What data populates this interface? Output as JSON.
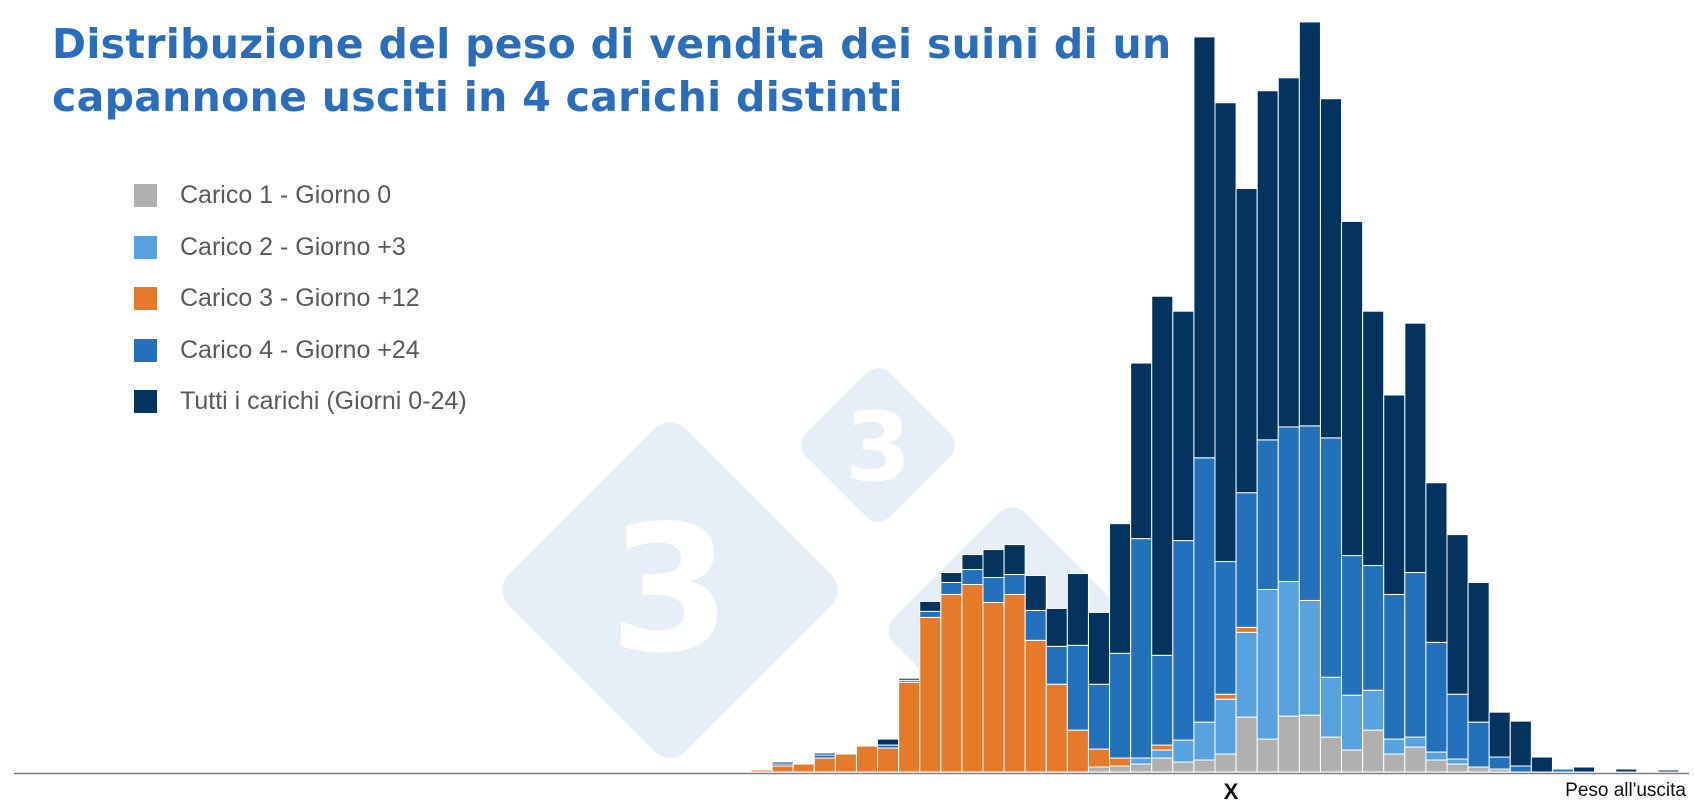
{
  "title_line1": "Distribuzione del peso di vendita dei suini di un",
  "title_line2": "capannone usciti in 4 carichi distinti",
  "watermark_glyph": "3",
  "chart_data": {
    "type": "bar",
    "stacked": true,
    "title": "Distribuzione del peso di vendita dei suini di un capannone usciti in 4 carichi distinti",
    "xlabel": "Peso all'uscita",
    "x_marker": "X",
    "ylabel": "",
    "ylim": [
      0,
      770
    ],
    "grid": false,
    "legend": "top-left",
    "bin_count": 44,
    "series": [
      {
        "name": "Carico 1 - Giorno 0",
        "color": "#b0b0b0",
        "values": [
          0,
          0,
          0,
          0,
          0,
          0,
          0,
          0,
          0,
          0,
          0,
          0,
          0,
          0,
          0,
          0,
          5,
          6,
          8,
          14,
          10,
          12,
          18,
          55,
          33,
          56,
          57,
          35,
          22,
          42,
          18,
          25,
          12,
          8,
          5,
          3,
          0,
          0,
          0,
          0,
          0,
          0,
          0,
          0
        ]
      },
      {
        "name": "Carico 2 - Giorno +3",
        "color": "#59a2e0",
        "values": [
          0,
          0,
          0,
          0,
          0,
          0,
          0,
          0,
          0,
          0,
          0,
          0,
          0,
          0,
          0,
          0,
          0,
          0,
          6,
          8,
          22,
          38,
          55,
          85,
          150,
          135,
          115,
          60,
          55,
          40,
          15,
          10,
          8,
          5,
          0,
          0,
          0,
          0,
          0,
          0,
          0,
          0,
          0,
          0
        ]
      },
      {
        "name": "Carico 3 - Giorno +12",
        "color": "#e57a2b",
        "values": [
          2,
          6,
          8,
          14,
          18,
          26,
          24,
          90,
          155,
          178,
          188,
          170,
          178,
          132,
          88,
          42,
          18,
          8,
          0,
          5,
          0,
          0,
          5,
          5,
          0,
          0,
          0,
          0,
          0,
          0,
          0,
          0,
          0,
          0,
          0,
          0,
          0,
          0,
          0,
          0,
          0,
          0,
          0,
          0
        ]
      },
      {
        "name": "Carico 4 - Giorno +24",
        "color": "#2371ba",
        "values": [
          0,
          2,
          0,
          3,
          0,
          0,
          3,
          2,
          6,
          12,
          15,
          25,
          20,
          30,
          38,
          85,
          65,
          105,
          220,
          90,
          200,
          265,
          133,
          135,
          150,
          155,
          175,
          240,
          140,
          125,
          145,
          165,
          110,
          65,
          45,
          12,
          6,
          0,
          3,
          0,
          0,
          0,
          0,
          0
        ]
      },
      {
        "name": "Tutti i carichi (Giorni 0-24)",
        "color": "#03345f",
        "values": [
          0,
          2,
          0,
          2,
          0,
          0,
          6,
          2,
          10,
          10,
          15,
          28,
          30,
          35,
          38,
          72,
          72,
          130,
          176,
          360,
          230,
          422,
          460,
          305,
          350,
          350,
          405,
          340,
          335,
          255,
          200,
          250,
          160,
          160,
          140,
          45,
          45,
          15,
          0,
          5,
          0,
          3,
          0,
          2
        ]
      }
    ]
  }
}
